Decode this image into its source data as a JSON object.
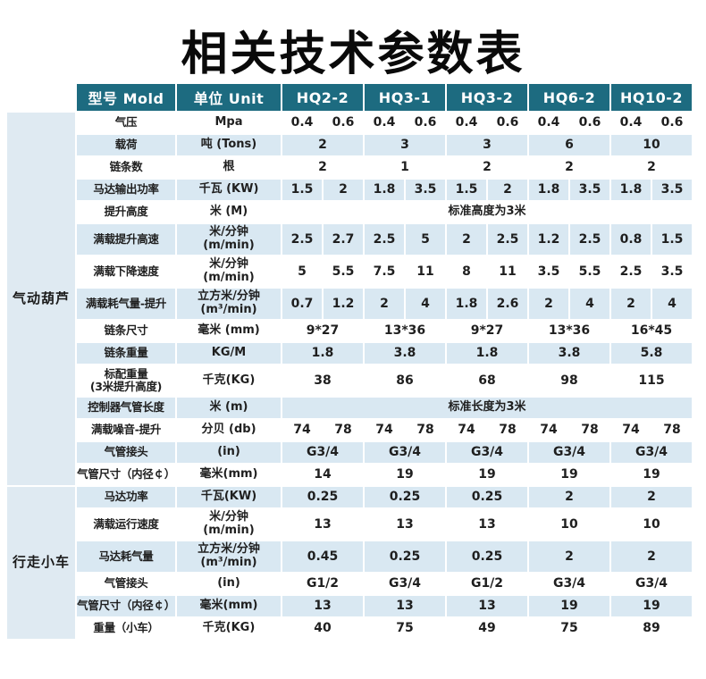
{
  "title": "相关技术参数表",
  "colors": {
    "header_bg": "#1d6b80",
    "header_text": "#ffffff",
    "row_alt_bg": "#d9e8f2",
    "section_cell_bg": "#dfeaf2",
    "text": "#1f1f1f"
  },
  "table": {
    "header": {
      "model_col": "型号 Mold",
      "unit_col": "单位 Unit",
      "models": [
        "HQ2-2",
        "HQ3-1",
        "HQ3-2",
        "HQ6-2",
        "HQ10-2"
      ]
    },
    "sections": [
      {
        "name": "气动葫芦",
        "rows": [
          {
            "label": "气压",
            "unit": "Mpa",
            "pairs": [
              [
                "0.4",
                "0.6"
              ],
              [
                "0.4",
                "0.6"
              ],
              [
                "0.4",
                "0.6"
              ],
              [
                "0.4",
                "0.6"
              ],
              [
                "0.4",
                "0.6"
              ]
            ]
          },
          {
            "label": "载荷",
            "unit": "吨 (Tons)",
            "values": [
              "2",
              "3",
              "3",
              "6",
              "10"
            ]
          },
          {
            "label": "链条数",
            "unit": "根",
            "values": [
              "2",
              "1",
              "2",
              "2",
              "2"
            ]
          },
          {
            "label": "马达输出功率",
            "unit": "千瓦 (KW)",
            "pairs": [
              [
                "1.5",
                "2"
              ],
              [
                "1.8",
                "3.5"
              ],
              [
                "1.5",
                "2"
              ],
              [
                "1.8",
                "3.5"
              ],
              [
                "1.8",
                "3.5"
              ]
            ]
          },
          {
            "label": "提升高度",
            "unit": "米 (M)",
            "span_value": "标准高度为3米"
          },
          {
            "label": "满载提升高速",
            "unit": [
              "米/分钟",
              "(m/min)"
            ],
            "pairs": [
              [
                "2.5",
                "2.7"
              ],
              [
                "2.5",
                "5"
              ],
              [
                "2",
                "2.5"
              ],
              [
                "1.2",
                "2.5"
              ],
              [
                "0.8",
                "1.5"
              ]
            ]
          },
          {
            "label": "满载下降速度",
            "unit": [
              "米/分钟",
              "(m/min)"
            ],
            "pairs": [
              [
                "5",
                "5.5"
              ],
              [
                "7.5",
                "11"
              ],
              [
                "8",
                "11"
              ],
              [
                "3.5",
                "5.5"
              ],
              [
                "2.5",
                "3.5"
              ]
            ]
          },
          {
            "label": "满载耗气量-提升",
            "unit": [
              "立方米/分钟",
              "(m³/min)"
            ],
            "pairs": [
              [
                "0.7",
                "1.2"
              ],
              [
                "2",
                "4"
              ],
              [
                "1.8",
                "2.6"
              ],
              [
                "2",
                "4"
              ],
              [
                "2",
                "4"
              ]
            ]
          },
          {
            "label": "链条尺寸",
            "unit": "毫米 (mm)",
            "values": [
              "9*27",
              "13*36",
              "9*27",
              "13*36",
              "16*45"
            ]
          },
          {
            "label": "链条重量",
            "unit": "KG/M",
            "values": [
              "1.8",
              "3.8",
              "1.8",
              "3.8",
              "5.8"
            ]
          },
          {
            "label": [
              "标配重量",
              "(3米提升高度)"
            ],
            "unit": "千克(KG)",
            "values": [
              "38",
              "86",
              "68",
              "98",
              "115"
            ]
          },
          {
            "label": "控制器气管长度",
            "unit": "米 (m)",
            "span_value": "标准长度为3米"
          },
          {
            "label": "满载噪音-提升",
            "unit": "分贝 (db)",
            "pairs": [
              [
                "74",
                "78"
              ],
              [
                "74",
                "78"
              ],
              [
                "74",
                "78"
              ],
              [
                "74",
                "78"
              ],
              [
                "74",
                "78"
              ]
            ]
          },
          {
            "label": "气管接头",
            "unit": "(in)",
            "values": [
              "G3/4",
              "G3/4",
              "G3/4",
              "G3/4",
              "G3/4"
            ]
          },
          {
            "label": "气管尺寸（内径￠）",
            "unit": "毫米(mm)",
            "values": [
              "14",
              "19",
              "19",
              "19",
              "19"
            ]
          }
        ]
      },
      {
        "name": "行走小车",
        "rows": [
          {
            "label": "马达功率",
            "unit": "千瓦(KW)",
            "values": [
              "0.25",
              "0.25",
              "0.25",
              "2",
              "2"
            ]
          },
          {
            "label": "满载运行速度",
            "unit": [
              "米/分钟",
              "(m/min)"
            ],
            "values": [
              "13",
              "13",
              "13",
              "10",
              "10"
            ]
          },
          {
            "label": "马达耗气量",
            "unit": [
              "立方米/分钟",
              "(m³/min)"
            ],
            "values": [
              "0.45",
              "0.25",
              "0.25",
              "2",
              "2"
            ]
          },
          {
            "label": "气管接头",
            "unit": "(in)",
            "values": [
              "G1/2",
              "G3/4",
              "G1/2",
              "G3/4",
              "G3/4"
            ]
          },
          {
            "label": "气管尺寸（内径￠）",
            "unit": "毫米(mm)",
            "values": [
              "13",
              "13",
              "13",
              "19",
              "19"
            ]
          },
          {
            "label": "重量（小车）",
            "unit": "千克(KG)",
            "values": [
              "40",
              "75",
              "49",
              "75",
              "89"
            ]
          }
        ]
      }
    ]
  }
}
